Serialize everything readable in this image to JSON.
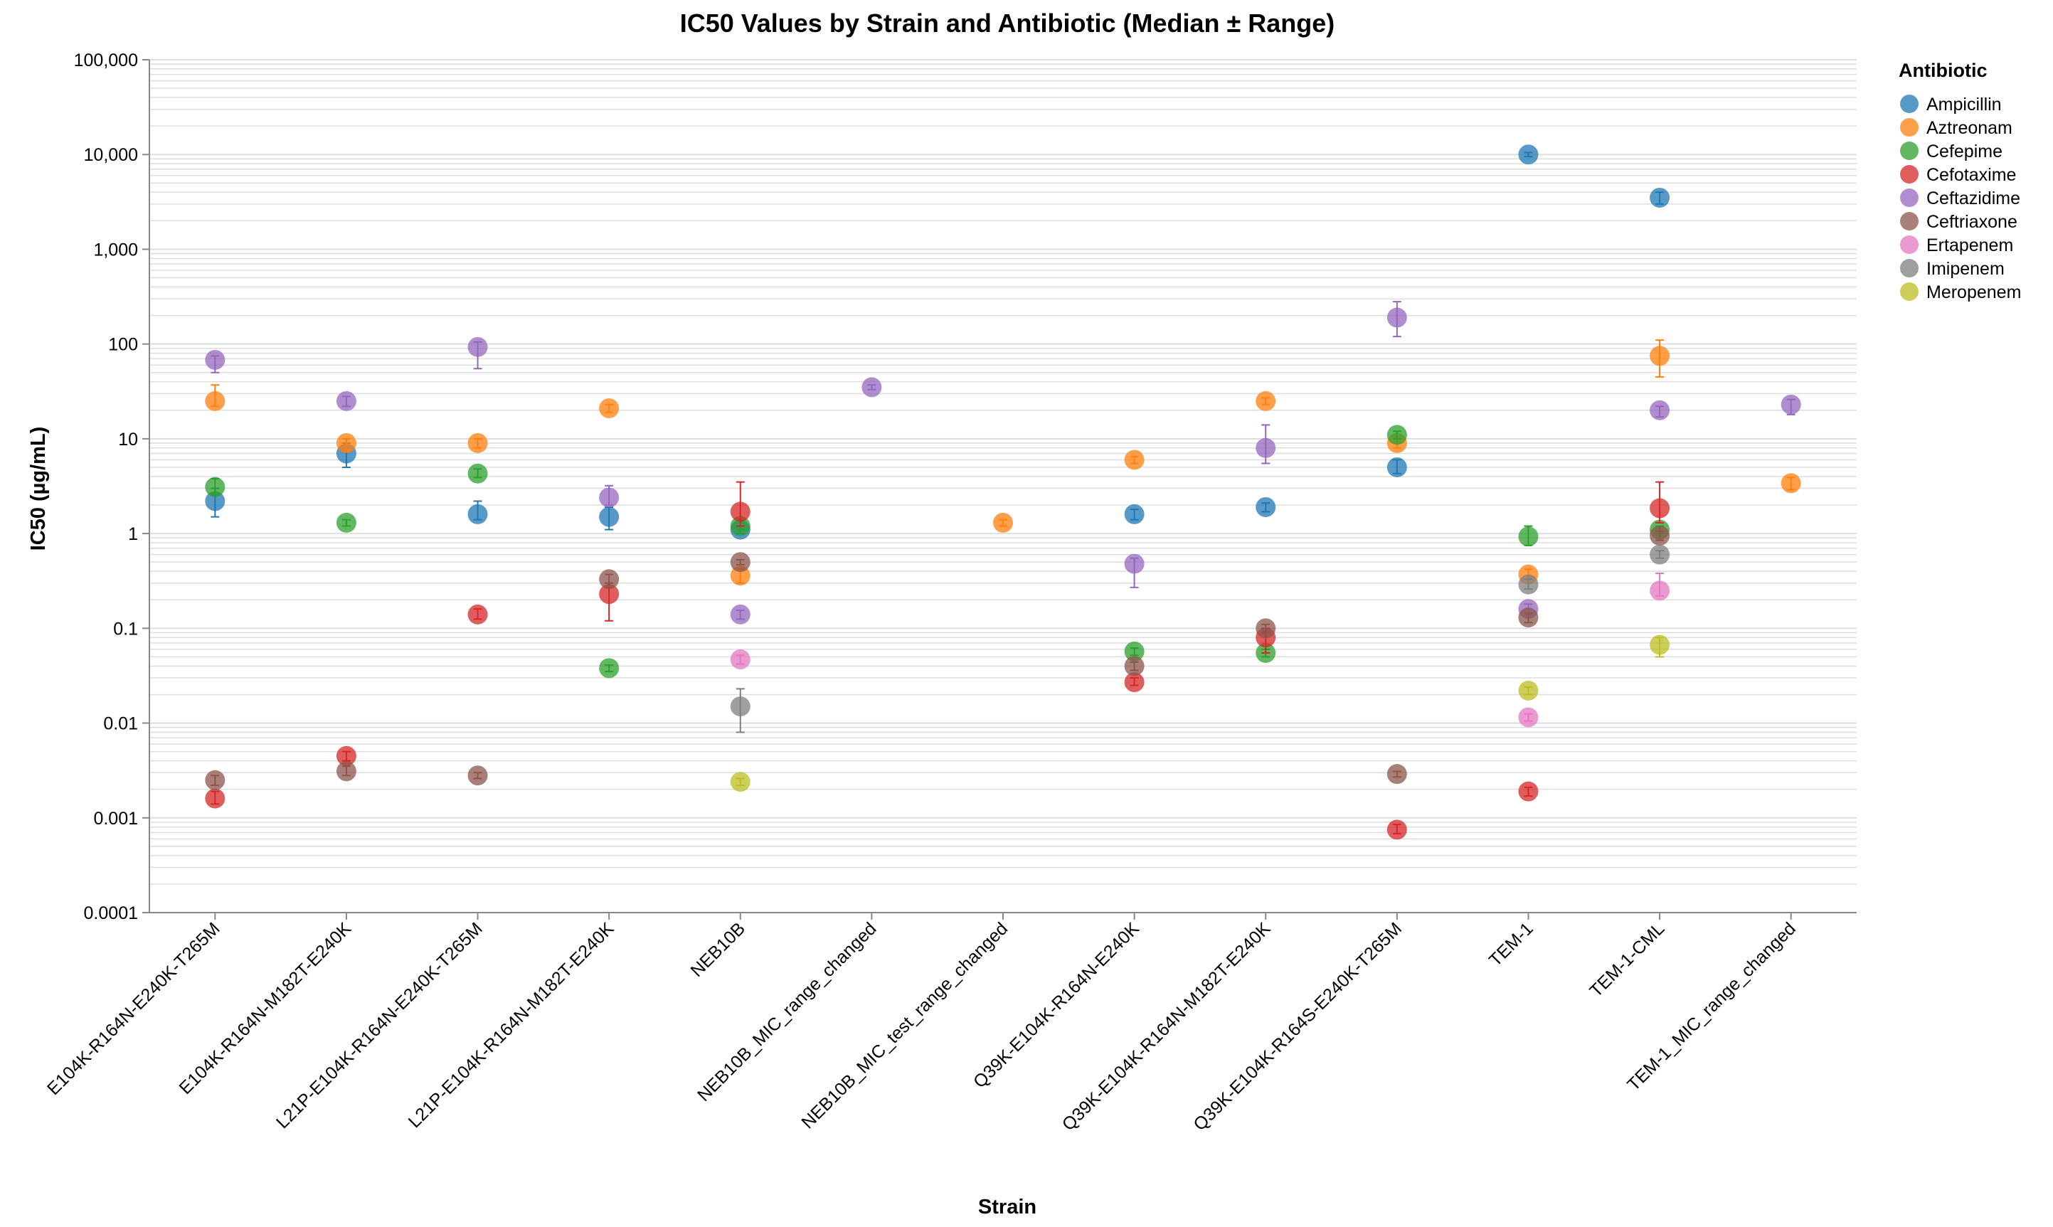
{
  "chart_data": {
    "type": "scatter",
    "title": "IC50 Values by Strain and Antibiotic (Median ± Range)",
    "xlabel": "Strain",
    "ylabel": "IC50 (µg/mL)",
    "y_scale": "log",
    "ylim": [
      0.0001,
      100000
    ],
    "y_ticks": [
      {
        "value": 100000,
        "label": "100,000"
      },
      {
        "value": 10000,
        "label": "10,000"
      },
      {
        "value": 1000,
        "label": "1,000"
      },
      {
        "value": 100,
        "label": "100"
      },
      {
        "value": 10,
        "label": "10"
      },
      {
        "value": 1,
        "label": "1"
      },
      {
        "value": 0.1,
        "label": "0.1"
      },
      {
        "value": 0.01,
        "label": "0.01"
      },
      {
        "value": 0.001,
        "label": "0.001"
      },
      {
        "value": 0.0001,
        "label": "0.0001"
      }
    ],
    "grid": true,
    "legend": {
      "title": "Antibiotic",
      "position": "right"
    },
    "categories": [
      "E104K-R164N-E240K-T265M",
      "E104K-R164N-M182T-E240K",
      "L21P-E104K-R164N-E240K-T265M",
      "L21P-E104K-R164N-M182T-E240K",
      "NEB10B",
      "NEB10B_MIC_range_changed",
      "NEB10B_MIC_test_range_changed",
      "Q39K-E104K-R164N-E240K",
      "Q39K-E104K-R164N-M182T-E240K",
      "Q39K-E104K-R164S-E240K-T265M",
      "TEM-1",
      "TEM-1-CML",
      "TEM-1_MIC_range_changed"
    ],
    "series": [
      {
        "name": "Ampicillin",
        "color": "#1f77b4",
        "points": [
          {
            "strain": "E104K-R164N-E240K-T265M",
            "median": 2.2,
            "min": 1.5,
            "max": 3.0
          },
          {
            "strain": "E104K-R164N-M182T-E240K",
            "median": 7.0,
            "min": 5.0,
            "max": 9.0
          },
          {
            "strain": "L21P-E104K-R164N-E240K-T265M",
            "median": 1.6,
            "min": 1.4,
            "max": 2.2
          },
          {
            "strain": "L21P-E104K-R164N-M182T-E240K",
            "median": 1.5,
            "min": 1.1,
            "max": 1.9
          },
          {
            "strain": "NEB10B",
            "median": 1.1,
            "min": 1.0,
            "max": 1.2
          },
          {
            "strain": "Q39K-E104K-R164N-E240K",
            "median": 1.6,
            "min": 1.4,
            "max": 1.8
          },
          {
            "strain": "Q39K-E104K-R164N-M182T-E240K",
            "median": 1.9,
            "min": 1.7,
            "max": 2.1
          },
          {
            "strain": "Q39K-E104K-R164S-E240K-T265M",
            "median": 5.0,
            "min": 4.3,
            "max": 6.0
          },
          {
            "strain": "TEM-1",
            "median": 10000,
            "min": 9500,
            "max": 10500
          },
          {
            "strain": "TEM-1-CML",
            "median": 3500,
            "min": 3000,
            "max": 4000
          }
        ]
      },
      {
        "name": "Aztreonam",
        "color": "#ff7f0e",
        "points": [
          {
            "strain": "E104K-R164N-E240K-T265M",
            "median": 25,
            "min": 22,
            "max": 37
          },
          {
            "strain": "E104K-R164N-M182T-E240K",
            "median": 9.0,
            "min": 7.5,
            "max": 10
          },
          {
            "strain": "L21P-E104K-R164N-E240K-T265M",
            "median": 9.0,
            "min": 8.0,
            "max": 10
          },
          {
            "strain": "L21P-E104K-R164N-M182T-E240K",
            "median": 21,
            "min": 19,
            "max": 23
          },
          {
            "strain": "NEB10B",
            "median": 0.36,
            "min": 0.3,
            "max": 0.42
          },
          {
            "strain": "NEB10B_MIC_test_range_changed",
            "median": 1.3,
            "min": 1.2,
            "max": 1.4
          },
          {
            "strain": "Q39K-E104K-R164N-E240K",
            "median": 6.0,
            "min": 5.5,
            "max": 6.5
          },
          {
            "strain": "Q39K-E104K-R164N-M182T-E240K",
            "median": 25,
            "min": 23,
            "max": 27
          },
          {
            "strain": "Q39K-E104K-R164S-E240K-T265M",
            "median": 9.0,
            "min": 8.0,
            "max": 10
          },
          {
            "strain": "TEM-1",
            "median": 0.37,
            "min": 0.33,
            "max": 0.42
          },
          {
            "strain": "TEM-1-CML",
            "median": 75,
            "min": 45,
            "max": 110
          },
          {
            "strain": "TEM-1_MIC_range_changed",
            "median": 3.4,
            "min": 2.9,
            "max": 3.9
          }
        ]
      },
      {
        "name": "Cefepime",
        "color": "#2ca02c",
        "points": [
          {
            "strain": "E104K-R164N-E240K-T265M",
            "median": 3.1,
            "min": 2.6,
            "max": 3.8
          },
          {
            "strain": "E104K-R164N-M182T-E240K",
            "median": 1.3,
            "min": 1.2,
            "max": 1.4
          },
          {
            "strain": "L21P-E104K-R164N-E240K-T265M",
            "median": 4.3,
            "min": 3.9,
            "max": 4.8
          },
          {
            "strain": "L21P-E104K-R164N-M182T-E240K",
            "median": 0.038,
            "min": 0.035,
            "max": 0.041
          },
          {
            "strain": "NEB10B",
            "median": 1.2,
            "min": 1.1,
            "max": 1.3
          },
          {
            "strain": "Q39K-E104K-R164N-E240K",
            "median": 0.057,
            "min": 0.052,
            "max": 0.062
          },
          {
            "strain": "Q39K-E104K-R164N-M182T-E240K",
            "median": 0.055,
            "min": 0.05,
            "max": 0.06
          },
          {
            "strain": "Q39K-E104K-R164S-E240K-T265M",
            "median": 11,
            "min": 10,
            "max": 12
          },
          {
            "strain": "TEM-1",
            "median": 0.93,
            "min": 0.75,
            "max": 1.2
          },
          {
            "strain": "TEM-1-CML",
            "median": 1.1,
            "min": 1.0,
            "max": 1.2
          }
        ]
      },
      {
        "name": "Cefotaxime",
        "color": "#d62728",
        "points": [
          {
            "strain": "E104K-R164N-E240K-T265M",
            "median": 0.0016,
            "min": 0.0014,
            "max": 0.0019
          },
          {
            "strain": "E104K-R164N-M182T-E240K",
            "median": 0.0045,
            "min": 0.004,
            "max": 0.005
          },
          {
            "strain": "L21P-E104K-R164N-E240K-T265M",
            "median": 0.14,
            "min": 0.125,
            "max": 0.16
          },
          {
            "strain": "L21P-E104K-R164N-M182T-E240K",
            "median": 0.23,
            "min": 0.12,
            "max": 0.3
          },
          {
            "strain": "NEB10B",
            "median": 1.7,
            "min": 1.2,
            "max": 3.5
          },
          {
            "strain": "Q39K-E104K-R164N-E240K",
            "median": 0.027,
            "min": 0.025,
            "max": 0.03
          },
          {
            "strain": "Q39K-E104K-R164N-M182T-E240K",
            "median": 0.08,
            "min": 0.055,
            "max": 0.1
          },
          {
            "strain": "Q39K-E104K-R164S-E240K-T265M",
            "median": 0.00075,
            "min": 0.00068,
            "max": 0.00085
          },
          {
            "strain": "TEM-1",
            "median": 0.0019,
            "min": 0.0017,
            "max": 0.0021
          },
          {
            "strain": "TEM-1-CML",
            "median": 1.85,
            "min": 1.3,
            "max": 3.5
          }
        ]
      },
      {
        "name": "Ceftazidime",
        "color": "#9467bd",
        "points": [
          {
            "strain": "E104K-R164N-E240K-T265M",
            "median": 68,
            "min": 50,
            "max": 75
          },
          {
            "strain": "E104K-R164N-M182T-E240K",
            "median": 25,
            "min": 22,
            "max": 28
          },
          {
            "strain": "L21P-E104K-R164N-E240K-T265M",
            "median": 93,
            "min": 55,
            "max": 105
          },
          {
            "strain": "L21P-E104K-R164N-M182T-E240K",
            "median": 2.4,
            "min": 2.0,
            "max": 3.2
          },
          {
            "strain": "NEB10B",
            "median": 0.14,
            "min": 0.125,
            "max": 0.155
          },
          {
            "strain": "NEB10B_MIC_range_changed",
            "median": 35,
            "min": 33,
            "max": 37
          },
          {
            "strain": "Q39K-E104K-R164N-E240K",
            "median": 0.48,
            "min": 0.27,
            "max": 0.55
          },
          {
            "strain": "Q39K-E104K-R164N-M182T-E240K",
            "median": 8.0,
            "min": 5.5,
            "max": 14
          },
          {
            "strain": "Q39K-E104K-R164S-E240K-T265M",
            "median": 190,
            "min": 120,
            "max": 280
          },
          {
            "strain": "TEM-1",
            "median": 0.16,
            "min": 0.14,
            "max": 0.18
          },
          {
            "strain": "TEM-1-CML",
            "median": 20,
            "min": 17,
            "max": 22
          },
          {
            "strain": "TEM-1_MIC_range_changed",
            "median": 23,
            "min": 18,
            "max": 26
          }
        ]
      },
      {
        "name": "Ceftriaxone",
        "color": "#8c564b",
        "points": [
          {
            "strain": "E104K-R164N-E240K-T265M",
            "median": 0.0025,
            "min": 0.0022,
            "max": 0.0028
          },
          {
            "strain": "E104K-R164N-M182T-E240K",
            "median": 0.0031,
            "min": 0.0028,
            "max": 0.0035
          },
          {
            "strain": "L21P-E104K-R164N-E240K-T265M",
            "median": 0.0028,
            "min": 0.0026,
            "max": 0.003
          },
          {
            "strain": "L21P-E104K-R164N-M182T-E240K",
            "median": 0.33,
            "min": 0.3,
            "max": 0.37
          },
          {
            "strain": "NEB10B",
            "median": 0.5,
            "min": 0.47,
            "max": 0.53
          },
          {
            "strain": "Q39K-E104K-R164N-E240K",
            "median": 0.04,
            "min": 0.036,
            "max": 0.044
          },
          {
            "strain": "Q39K-E104K-R164N-M182T-E240K",
            "median": 0.1,
            "min": 0.09,
            "max": 0.11
          },
          {
            "strain": "Q39K-E104K-R164S-E240K-T265M",
            "median": 0.0029,
            "min": 0.0027,
            "max": 0.0031
          },
          {
            "strain": "TEM-1",
            "median": 0.13,
            "min": 0.115,
            "max": 0.145
          },
          {
            "strain": "TEM-1-CML",
            "median": 0.95,
            "min": 0.85,
            "max": 1.05
          }
        ]
      },
      {
        "name": "Ertapenem",
        "color": "#e377c2",
        "points": [
          {
            "strain": "NEB10B",
            "median": 0.047,
            "min": 0.042,
            "max": 0.052
          },
          {
            "strain": "TEM-1",
            "median": 0.0115,
            "min": 0.0105,
            "max": 0.0125
          },
          {
            "strain": "TEM-1-CML",
            "median": 0.25,
            "min": 0.22,
            "max": 0.38
          }
        ]
      },
      {
        "name": "Imipenem",
        "color": "#7f7f7f",
        "points": [
          {
            "strain": "NEB10B",
            "median": 0.015,
            "min": 0.008,
            "max": 0.023
          },
          {
            "strain": "TEM-1",
            "median": 0.29,
            "min": 0.26,
            "max": 0.33
          },
          {
            "strain": "TEM-1-CML",
            "median": 0.6,
            "min": 0.55,
            "max": 0.66
          }
        ]
      },
      {
        "name": "Meropenem",
        "color": "#bcbd22",
        "points": [
          {
            "strain": "NEB10B",
            "median": 0.0024,
            "min": 0.0022,
            "max": 0.0026
          },
          {
            "strain": "TEM-1",
            "median": 0.022,
            "min": 0.02,
            "max": 0.024
          },
          {
            "strain": "TEM-1-CML",
            "median": 0.067,
            "min": 0.05,
            "max": 0.08
          }
        ]
      }
    ]
  }
}
